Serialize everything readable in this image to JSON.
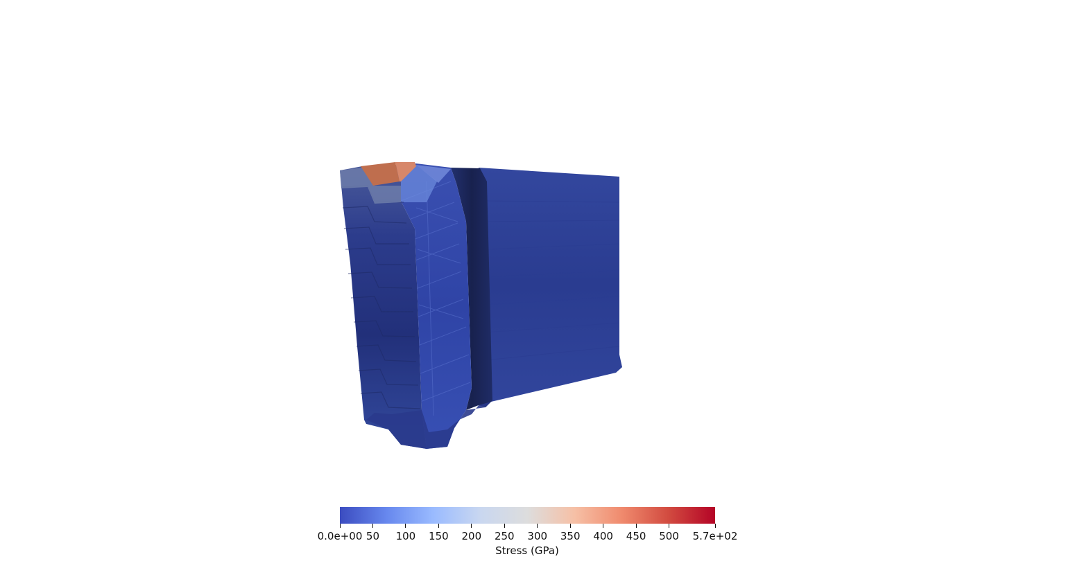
{
  "colorbar": {
    "title": "Stress (GPa)",
    "min_label": "0.0e+00",
    "max_label": "5.7e+02",
    "min_value": 0,
    "max_value": 570,
    "ticks": [
      {
        "value": 0,
        "label": "0.0e+00"
      },
      {
        "value": 50,
        "label": "50"
      },
      {
        "value": 100,
        "label": "100"
      },
      {
        "value": 150,
        "label": "150"
      },
      {
        "value": 200,
        "label": "200"
      },
      {
        "value": 250,
        "label": "250"
      },
      {
        "value": 300,
        "label": "300"
      },
      {
        "value": 350,
        "label": "350"
      },
      {
        "value": 400,
        "label": "400"
      },
      {
        "value": 450,
        "label": "450"
      },
      {
        "value": 500,
        "label": "500"
      },
      {
        "value": 570,
        "label": "5.7e+02"
      }
    ],
    "colormap": [
      "#3b4cc0",
      "#6788ee",
      "#9abbff",
      "#c9d7f0",
      "#dddddd",
      "#f6c0a6",
      "#f08b6e",
      "#d24b40",
      "#b40426"
    ]
  },
  "colors": {
    "background": "#ffffff",
    "body_dark": "#243478",
    "body_mid": "#2f42a0",
    "body_light": "#3a52b8",
    "shadow_band": "#1a2454",
    "hotspot": "#c8765a"
  }
}
